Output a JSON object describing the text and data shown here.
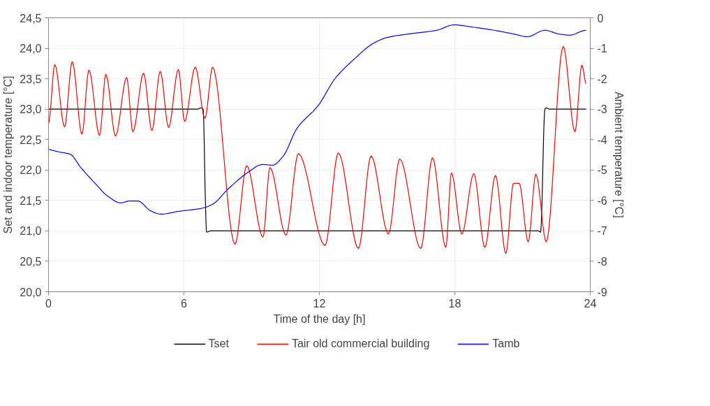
{
  "chart_data": {
    "type": "line",
    "xlabel": "Time of the day [h]",
    "ylabel": "Set and indoor temperature [°C]",
    "y2label": "Ambient temperature [°C]",
    "xlim": [
      0,
      24
    ],
    "xticks": [
      0,
      6,
      12,
      18,
      24
    ],
    "ylim": [
      20,
      24.5
    ],
    "yticks": [
      {
        "value": 20,
        "label": "20,0"
      },
      {
        "value": 20.5,
        "label": "20,5"
      },
      {
        "value": 21,
        "label": "21,0"
      },
      {
        "value": 21.5,
        "label": "21,5"
      },
      {
        "value": 22,
        "label": "22,0"
      },
      {
        "value": 22.5,
        "label": "22,5"
      },
      {
        "value": 23,
        "label": "23,0"
      },
      {
        "value": 23.5,
        "label": "23,5"
      },
      {
        "value": 24,
        "label": "24,0"
      },
      {
        "value": 24.5,
        "label": "24,5"
      }
    ],
    "y2lim": [
      -9,
      0
    ],
    "y2ticks": [
      -9,
      -8,
      -7,
      -6,
      -5,
      -4,
      -3,
      -2,
      -1,
      0
    ],
    "grid": true,
    "legend": "bottom",
    "line_style": "solid",
    "marker": "none",
    "series": [
      {
        "name": "Tset",
        "color": "#000000",
        "x": [
          0,
          6.6,
          6.75,
          6.85,
          6.95,
          7.0,
          7.2,
          21.7,
          21.8,
          21.99,
          22.05,
          22.2,
          23.82
        ],
        "values": [
          23.0,
          23.0,
          23.02,
          23.0,
          21.5,
          20.98,
          21.0,
          21.0,
          20.98,
          23.0,
          23.02,
          23.0,
          23.0
        ]
      },
      {
        "name": "Tair old commercial building",
        "color": "#ff0000",
        "x": [
          0,
          0.28,
          0.71,
          1.05,
          1.48,
          1.79,
          2.26,
          2.54,
          2.97,
          3.46,
          3.74,
          4.21,
          4.58,
          4.95,
          5.32,
          5.75,
          6.03,
          6.5,
          6.93,
          7.27,
          8.26,
          8.78,
          9.5,
          9.81,
          10.52,
          11.07,
          12.25,
          12.84,
          13.73,
          14.29,
          15.06,
          15.56,
          16.49,
          17.01,
          17.6,
          17.85,
          18.31,
          18.84,
          19.33,
          19.8,
          20.26,
          20.6,
          20.85,
          21.25,
          21.59,
          22.05,
          22.8,
          23.32,
          23.63,
          23.82
        ],
        "values": [
          22.77,
          23.73,
          22.71,
          23.78,
          22.59,
          23.64,
          22.57,
          23.57,
          22.56,
          23.52,
          22.63,
          23.59,
          22.65,
          23.62,
          22.7,
          23.65,
          22.8,
          23.69,
          22.85,
          23.69,
          20.78,
          22.07,
          20.9,
          22.04,
          20.93,
          22.27,
          20.76,
          22.28,
          20.71,
          22.23,
          20.95,
          22.18,
          20.71,
          22.2,
          20.73,
          21.95,
          20.95,
          21.94,
          20.73,
          21.91,
          20.63,
          21.78,
          21.78,
          20.82,
          21.93,
          20.82,
          24.03,
          22.63,
          23.72,
          23.42
        ]
      },
      {
        "name": "Tamb",
        "color": "#0000ff",
        "axis": "y2",
        "x": [
          0,
          0.49,
          0.96,
          1.42,
          2.04,
          2.66,
          3.19,
          3.59,
          3.96,
          4.52,
          4.98,
          5.75,
          6.83,
          7.3,
          7.92,
          8.85,
          9.47,
          9.93,
          10.39,
          11.01,
          11.94,
          12.71,
          13.48,
          14.41,
          15.03,
          15.96,
          17.19,
          17.97,
          18.74,
          19.98,
          20.6,
          21.21,
          21.99,
          22.61,
          23.08,
          23.82
        ],
        "values": [
          -4.32,
          -4.41,
          -4.48,
          -4.91,
          -5.42,
          -5.88,
          -6.08,
          -6.02,
          -6.02,
          -6.34,
          -6.45,
          -6.36,
          -6.25,
          -6.11,
          -5.65,
          -5.07,
          -4.82,
          -4.84,
          -4.55,
          -3.63,
          -2.89,
          -1.98,
          -1.4,
          -0.83,
          -0.64,
          -0.53,
          -0.41,
          -0.23,
          -0.3,
          -0.44,
          -0.53,
          -0.62,
          -0.41,
          -0.53,
          -0.57,
          -0.41
        ]
      }
    ]
  }
}
